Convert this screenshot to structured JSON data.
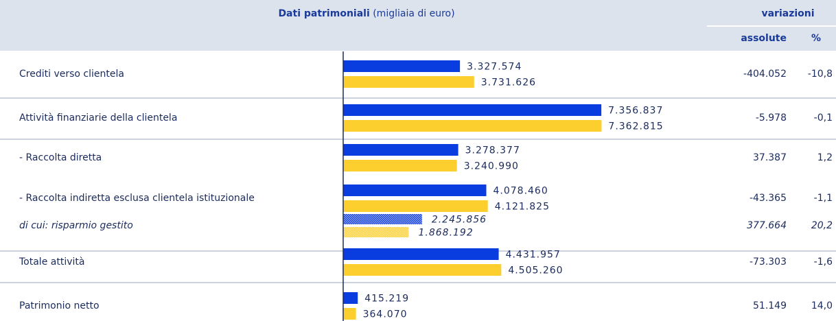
{
  "chart_data": {
    "type": "hbar",
    "title": "Dati patrimoniali",
    "subtitle": "(migliaia di euro)",
    "categories": [
      "Crediti verso clientela",
      "Attività finanziarie della clientela",
      " - Raccolta diretta",
      " - Raccolta indiretta esclusa clientela istituzionale",
      "di cui: risparmio gestito",
      "Totale attività",
      "Patrimonio netto"
    ],
    "series": [
      {
        "color": "#0a3de0",
        "values": [
          3327574,
          7356837,
          3278377,
          4078460,
          2245856,
          4431957,
          415219
        ],
        "value_labels": [
          "3.327.574",
          "7.356.837",
          "3.278.377",
          "4.078.460",
          "2.245.856",
          "4.431.957",
          "415.219"
        ]
      },
      {
        "color": "#fccf2e",
        "values": [
          3731626,
          7362815,
          3240990,
          4121825,
          1868192,
          4505260,
          364070
        ],
        "value_labels": [
          "3.731.626",
          "7.362.815",
          "3.240.990",
          "4.121.825",
          "1.868.192",
          "4.505.260",
          "364.070"
        ]
      }
    ],
    "xlim": [
      0,
      8000000
    ]
  },
  "table": {
    "group_header": "variazioni",
    "absolute_header": "assolute",
    "percent_header": "%",
    "absolute": [
      "-404.052",
      "-5.978",
      "37.387",
      "-43.365",
      "377.664",
      "-73.303",
      "51.149"
    ],
    "percent": [
      "-10,8",
      "-0,1",
      "1,2",
      "-1,1",
      "20,2",
      "-1,6",
      "14,0"
    ]
  }
}
